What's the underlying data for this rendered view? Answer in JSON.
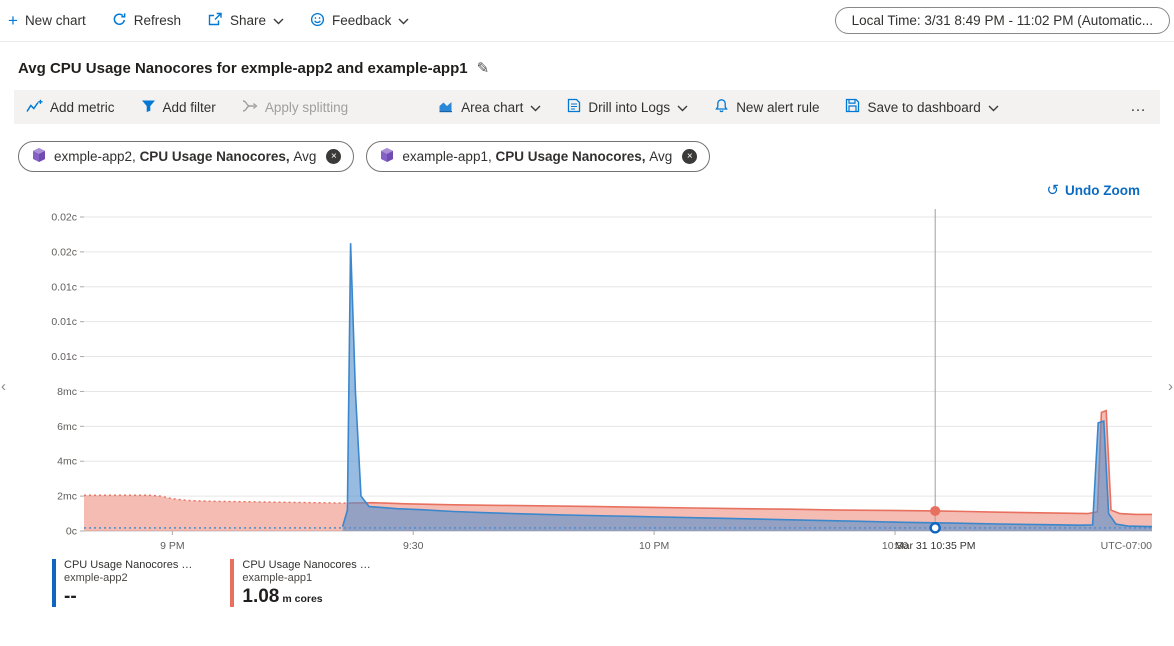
{
  "icons": {
    "plus": "+",
    "pencil": "✎",
    "close": "×",
    "undo": "↺",
    "chevron_left": "‹",
    "chevron_right": "›"
  },
  "colors": {
    "accent": "#0078d4",
    "link": "#0b6bc2",
    "disabled": "#a19f9d"
  },
  "topbar": {
    "new_chart": "New chart",
    "refresh": "Refresh",
    "share": "Share",
    "feedback": "Feedback",
    "local_time": "Local Time: 3/31 8:49 PM - 11:02 PM (Automatic..."
  },
  "title": "Avg CPU Usage Nanocores for exmple-app2 and example-app1",
  "toolbar": {
    "add_metric": "Add metric",
    "add_filter": "Add filter",
    "apply_splitting": "Apply splitting",
    "chart_type": "Area chart",
    "drill_into_logs": "Drill into Logs",
    "new_alert_rule": "New alert rule",
    "save_to_dashboard": "Save to dashboard",
    "more": "…"
  },
  "pills": [
    {
      "app": "exmple-app2, ",
      "metric": "CPU Usage Nanocores, ",
      "agg": "Avg"
    },
    {
      "app": "example-app1, ",
      "metric": "CPU Usage Nanocores, ",
      "agg": "Avg"
    }
  ],
  "undo_zoom": "Undo Zoom",
  "legend": [
    {
      "name": "CPU Usage Nanocores …",
      "app": "exmple-app2",
      "value": "--",
      "unit": "",
      "color": "#1065c0"
    },
    {
      "name": "CPU Usage Nanocores …",
      "app": "example-app1",
      "value": "1.08",
      "unit": "m cores",
      "color": "#e8705f"
    }
  ],
  "chart_data": {
    "type": "area",
    "title": "Avg CPU Usage Nanocores for exmple-app2 and example-app1",
    "y_unit": "cores",
    "ylim": [
      0,
      18
    ],
    "x_domain_minutes": [
      0,
      133
    ],
    "x_start_time": "8:49 PM",
    "x_end_time": "11:02 PM",
    "grid": true,
    "y_ticks": [
      {
        "v": 0,
        "label": "0c"
      },
      {
        "v": 2,
        "label": "2mc"
      },
      {
        "v": 4,
        "label": "4mc"
      },
      {
        "v": 6,
        "label": "6mc"
      },
      {
        "v": 8,
        "label": "8mc"
      },
      {
        "v": 10,
        "label": "0.01c"
      },
      {
        "v": 12,
        "label": "0.01c"
      },
      {
        "v": 14,
        "label": "0.01c"
      },
      {
        "v": 16,
        "label": "0.02c"
      },
      {
        "v": 18,
        "label": "0.02c"
      }
    ],
    "x_ticks": [
      {
        "t": 11,
        "label": "9 PM"
      },
      {
        "t": 41,
        "label": "9:30"
      },
      {
        "t": 71,
        "label": "10 PM"
      },
      {
        "t": 101,
        "label": "10:30"
      }
    ],
    "x_end_label": "UTC-07:00",
    "crosshair": {
      "t": 106,
      "label": "Mar 31 10:35 PM",
      "markers": [
        {
          "v": 1.15,
          "fill": "#e8705f"
        },
        {
          "v": 0.18,
          "fill": "#ffffff",
          "stroke": "#1065c0"
        }
      ]
    },
    "series": [
      {
        "name": "example-app1 CPU Usage Nanocores Avg (millicores)",
        "color": "#e8705f",
        "fill": "rgba(236,122,105,0.5)",
        "segments": [
          {
            "dotted": true,
            "fill": true,
            "points": [
              [
                0,
                2.05
              ],
              [
                8,
                2.05
              ],
              [
                9.5,
                2.0
              ],
              [
                11,
                1.85
              ],
              [
                13,
                1.75
              ],
              [
                16,
                1.7
              ],
              [
                20,
                1.68
              ],
              [
                26,
                1.64
              ],
              [
                33,
                1.6
              ]
            ]
          },
          {
            "dotted": false,
            "fill": true,
            "points": [
              [
                33,
                1.6
              ],
              [
                36,
                1.62
              ],
              [
                40,
                1.56
              ],
              [
                46,
                1.5
              ],
              [
                52,
                1.47
              ],
              [
                58,
                1.44
              ],
              [
                64,
                1.4
              ],
              [
                70,
                1.36
              ],
              [
                76,
                1.32
              ],
              [
                82,
                1.28
              ],
              [
                88,
                1.25
              ],
              [
                94,
                1.2
              ],
              [
                100,
                1.18
              ],
              [
                106,
                1.15
              ],
              [
                110,
                1.12
              ],
              [
                114,
                1.08
              ],
              [
                118,
                1.05
              ],
              [
                122,
                1.02
              ],
              [
                125,
                1.0
              ],
              [
                126.2,
                1.1
              ],
              [
                126.7,
                6.8
              ],
              [
                127.3,
                6.9
              ],
              [
                127.9,
                1.2
              ],
              [
                129,
                1.0
              ],
              [
                131,
                0.95
              ],
              [
                133,
                0.95
              ]
            ]
          }
        ]
      },
      {
        "name": "exmple-app2 CPU Usage Nanocores Avg (millicores)",
        "color": "#3a87cc",
        "fill": "rgba(84,144,205,0.6)",
        "segments": [
          {
            "dotted": true,
            "fill": false,
            "points": [
              [
                0,
                0.18
              ],
              [
                133,
                0.18
              ]
            ]
          },
          {
            "dotted": false,
            "fill": true,
            "points": [
              [
                32.2,
                0.25
              ],
              [
                32.8,
                1.2
              ],
              [
                33.2,
                16.5
              ],
              [
                33.8,
                8.0
              ],
              [
                34.5,
                2.0
              ],
              [
                35.5,
                1.4
              ],
              [
                37,
                1.35
              ],
              [
                39,
                1.28
              ],
              [
                42,
                1.22
              ],
              [
                46,
                1.12
              ],
              [
                50,
                1.05
              ],
              [
                55,
                0.98
              ],
              [
                60,
                0.92
              ],
              [
                66,
                0.86
              ],
              [
                72,
                0.8
              ],
              [
                78,
                0.74
              ],
              [
                84,
                0.68
              ],
              [
                90,
                0.62
              ],
              [
                96,
                0.56
              ],
              [
                102,
                0.5
              ],
              [
                108,
                0.45
              ],
              [
                114,
                0.4
              ],
              [
                120,
                0.36
              ],
              [
                124,
                0.33
              ],
              [
                125.6,
                0.35
              ],
              [
                126.3,
                6.2
              ],
              [
                127,
                6.3
              ],
              [
                127.6,
                1.0
              ],
              [
                128.5,
                0.4
              ],
              [
                130,
                0.28
              ],
              [
                133,
                0.25
              ]
            ]
          }
        ]
      }
    ]
  }
}
